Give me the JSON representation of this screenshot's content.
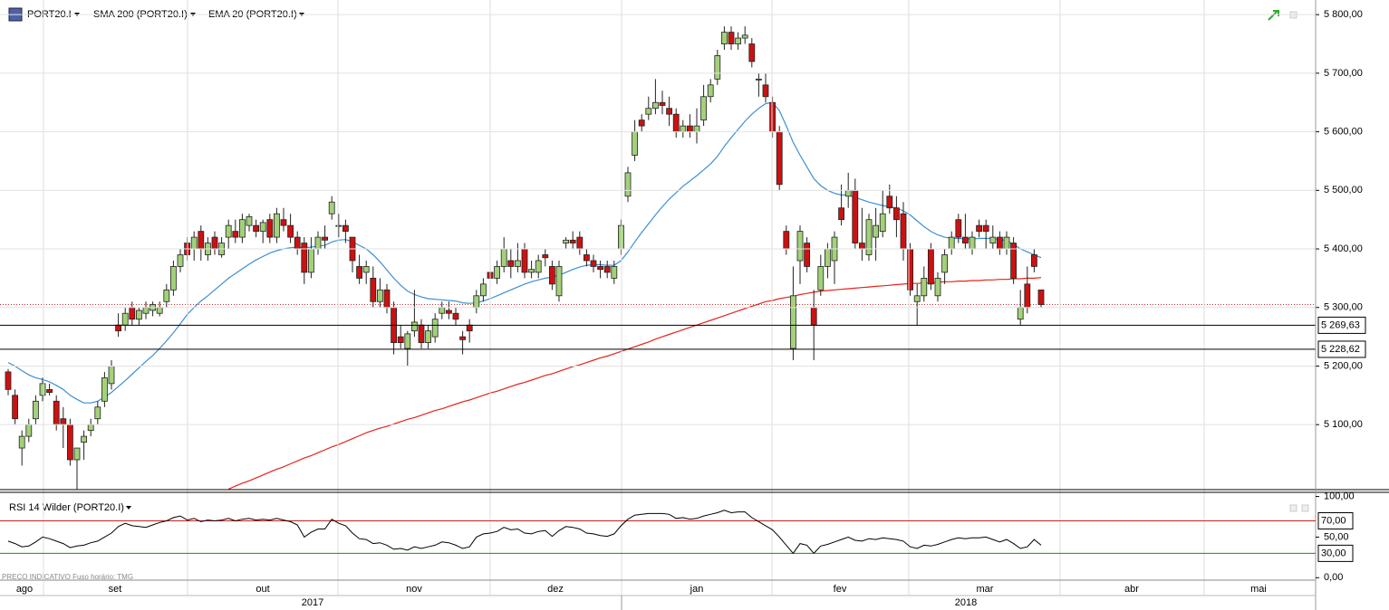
{
  "chart_data": {
    "type": "candlestick",
    "symbol": "PORT20.I",
    "up_color": "#a3d17a",
    "down_color": "#cc1111",
    "grid": true,
    "ylim": [
      4989,
      5825
    ],
    "yticks": [
      {
        "value": 5100,
        "label": "5 100,00"
      },
      {
        "value": 5200,
        "label": "5 200,00"
      },
      {
        "value": 5300,
        "label": "5 300,00"
      },
      {
        "value": 5400,
        "label": "5 400,00"
      },
      {
        "value": 5500,
        "label": "5 500,00"
      },
      {
        "value": 5600,
        "label": "5 600,00"
      },
      {
        "value": 5700,
        "label": "5 700,00"
      },
      {
        "value": 5800,
        "label": "5 800,00"
      }
    ],
    "levels": [
      {
        "value": 5269.63,
        "label": "5 269,63"
      },
      {
        "value": 5228.62,
        "label": "5 228,62"
      }
    ],
    "ohlc": [
      [
        5190,
        5195,
        5150,
        5160
      ],
      [
        5150,
        5160,
        5100,
        5110
      ],
      [
        5060,
        5090,
        5030,
        5080
      ],
      [
        5080,
        5110,
        5070,
        5100
      ],
      [
        5110,
        5150,
        5100,
        5140
      ],
      [
        5150,
        5180,
        5140,
        5170
      ],
      [
        5160,
        5170,
        5150,
        5155
      ],
      [
        5140,
        5150,
        5090,
        5100
      ],
      [
        5110,
        5130,
        5060,
        5100
      ],
      [
        5100,
        5110,
        5030,
        5040
      ],
      [
        5040,
        5060,
        4990,
        5060
      ],
      [
        5070,
        5090,
        5040,
        5080
      ],
      [
        5090,
        5110,
        5080,
        5100
      ],
      [
        5110,
        5140,
        5100,
        5130
      ],
      [
        5140,
        5190,
        5130,
        5180
      ],
      [
        5170,
        5210,
        5160,
        5200
      ],
      [
        5270,
        5290,
        5250,
        5260
      ],
      [
        5270,
        5300,
        5260,
        5290
      ],
      [
        5300,
        5310,
        5270,
        5280
      ],
      [
        5280,
        5300,
        5270,
        5295
      ],
      [
        5290,
        5310,
        5280,
        5300
      ],
      [
        5295,
        5310,
        5285,
        5305
      ],
      [
        5290,
        5310,
        5285,
        5300
      ],
      [
        5310,
        5340,
        5300,
        5330
      ],
      [
        5330,
        5380,
        5320,
        5370
      ],
      [
        5370,
        5400,
        5360,
        5390
      ],
      [
        5410,
        5420,
        5380,
        5390
      ],
      [
        5400,
        5430,
        5380,
        5420
      ],
      [
        5430,
        5440,
        5380,
        5400
      ],
      [
        5390,
        5420,
        5380,
        5410
      ],
      [
        5420,
        5430,
        5390,
        5400
      ],
      [
        5390,
        5420,
        5385,
        5410
      ],
      [
        5420,
        5450,
        5400,
        5440
      ],
      [
        5430,
        5450,
        5410,
        5420
      ],
      [
        5420,
        5460,
        5410,
        5450
      ],
      [
        5440,
        5460,
        5430,
        5455
      ],
      [
        5440,
        5450,
        5420,
        5430
      ],
      [
        5430,
        5450,
        5410,
        5445
      ],
      [
        5450,
        5460,
        5410,
        5420
      ],
      [
        5420,
        5470,
        5410,
        5460
      ],
      [
        5450,
        5470,
        5430,
        5440
      ],
      [
        5440,
        5460,
        5410,
        5420
      ],
      [
        5420,
        5430,
        5390,
        5400
      ],
      [
        5410,
        5420,
        5340,
        5360
      ],
      [
        5360,
        5420,
        5350,
        5400
      ],
      [
        5400,
        5430,
        5390,
        5420
      ],
      [
        5420,
        5440,
        5400,
        5415
      ],
      [
        5460,
        5490,
        5450,
        5480
      ],
      [
        5440,
        5460,
        5420,
        5440
      ],
      [
        5440,
        5450,
        5410,
        5430
      ],
      [
        5420,
        5420,
        5360,
        5380
      ],
      [
        5370,
        5390,
        5340,
        5350
      ],
      [
        5360,
        5380,
        5340,
        5370
      ],
      [
        5350,
        5370,
        5300,
        5310
      ],
      [
        5310,
        5350,
        5300,
        5330
      ],
      [
        5330,
        5340,
        5290,
        5300
      ],
      [
        5300,
        5310,
        5220,
        5240
      ],
      [
        5250,
        5270,
        5230,
        5240
      ],
      [
        5230,
        5260,
        5200,
        5255
      ],
      [
        5260,
        5330,
        5250,
        5275
      ],
      [
        5270,
        5280,
        5230,
        5240
      ],
      [
        5240,
        5270,
        5230,
        5260
      ],
      [
        5250,
        5290,
        5240,
        5280
      ],
      [
        5290,
        5310,
        5280,
        5300
      ],
      [
        5295,
        5310,
        5280,
        5290
      ],
      [
        5290,
        5300,
        5270,
        5280
      ],
      [
        5250,
        5260,
        5220,
        5245
      ],
      [
        5270,
        5280,
        5240,
        5260
      ],
      [
        5300,
        5330,
        5290,
        5320
      ],
      [
        5320,
        5350,
        5310,
        5340
      ],
      [
        5360,
        5370,
        5340,
        5350
      ],
      [
        5350,
        5380,
        5340,
        5370
      ],
      [
        5370,
        5420,
        5360,
        5400
      ],
      [
        5380,
        5400,
        5350,
        5370
      ],
      [
        5370,
        5410,
        5360,
        5380
      ],
      [
        5400,
        5410,
        5350,
        5360
      ],
      [
        5360,
        5380,
        5350,
        5365
      ],
      [
        5360,
        5390,
        5350,
        5380
      ],
      [
        5390,
        5400,
        5370,
        5385
      ],
      [
        5370,
        5380,
        5330,
        5340
      ],
      [
        5320,
        5380,
        5310,
        5370
      ],
      [
        5410,
        5420,
        5400,
        5415
      ],
      [
        5415,
        5430,
        5400,
        5410
      ],
      [
        5420,
        5430,
        5390,
        5400
      ],
      [
        5390,
        5400,
        5370,
        5380
      ],
      [
        5380,
        5390,
        5360,
        5370
      ],
      [
        5370,
        5380,
        5350,
        5365
      ],
      [
        5370,
        5380,
        5350,
        5360
      ],
      [
        5350,
        5380,
        5340,
        5370
      ],
      [
        5400,
        5450,
        5390,
        5440
      ],
      [
        5490,
        5540,
        5480,
        5530
      ],
      [
        5560,
        5620,
        5550,
        5600
      ],
      [
        5620,
        5630,
        5600,
        5610
      ],
      [
        5630,
        5660,
        5620,
        5640
      ],
      [
        5640,
        5690,
        5630,
        5650
      ],
      [
        5650,
        5670,
        5630,
        5645
      ],
      [
        5640,
        5660,
        5610,
        5630
      ],
      [
        5630,
        5640,
        5590,
        5600
      ],
      [
        5600,
        5620,
        5590,
        5610
      ],
      [
        5610,
        5630,
        5590,
        5600
      ],
      [
        5600,
        5640,
        5580,
        5610
      ],
      [
        5620,
        5680,
        5610,
        5660
      ],
      [
        5660,
        5690,
        5650,
        5680
      ],
      [
        5690,
        5740,
        5680,
        5730
      ],
      [
        5750,
        5780,
        5740,
        5770
      ],
      [
        5770,
        5780,
        5740,
        5750
      ],
      [
        5750,
        5770,
        5740,
        5760
      ],
      [
        5760,
        5780,
        5750,
        5765
      ],
      [
        5750,
        5760,
        5710,
        5720
      ],
      [
        5690,
        5700,
        5660,
        5690
      ],
      [
        5680,
        5700,
        5650,
        5660
      ],
      [
        5650,
        5660,
        5590,
        5600
      ],
      [
        5600,
        5610,
        5500,
        5510
      ],
      [
        5430,
        5440,
        5390,
        5400
      ],
      [
        5230,
        5370,
        5210,
        5320
      ],
      [
        5380,
        5440,
        5340,
        5430
      ],
      [
        5410,
        5420,
        5360,
        5370
      ],
      [
        5300,
        5330,
        5210,
        5270
      ],
      [
        5330,
        5390,
        5320,
        5370
      ],
      [
        5370,
        5410,
        5350,
        5400
      ],
      [
        5380,
        5430,
        5340,
        5420
      ],
      [
        5470,
        5510,
        5440,
        5450
      ],
      [
        5490,
        5530,
        5470,
        5500
      ],
      [
        5500,
        5520,
        5400,
        5410
      ],
      [
        5410,
        5470,
        5380,
        5400
      ],
      [
        5390,
        5460,
        5380,
        5450
      ],
      [
        5420,
        5470,
        5380,
        5440
      ],
      [
        5430,
        5500,
        5420,
        5460
      ],
      [
        5490,
        5510,
        5460,
        5470
      ],
      [
        5470,
        5490,
        5420,
        5450
      ],
      [
        5460,
        5480,
        5380,
        5400
      ],
      [
        5400,
        5410,
        5320,
        5330
      ],
      [
        5310,
        5340,
        5270,
        5320
      ],
      [
        5320,
        5370,
        5310,
        5350
      ],
      [
        5400,
        5410,
        5330,
        5340
      ],
      [
        5320,
        5360,
        5310,
        5350
      ],
      [
        5360,
        5400,
        5340,
        5390
      ],
      [
        5400,
        5430,
        5390,
        5420
      ],
      [
        5450,
        5460,
        5410,
        5420
      ],
      [
        5420,
        5460,
        5400,
        5410
      ],
      [
        5400,
        5430,
        5390,
        5420
      ],
      [
        5440,
        5450,
        5420,
        5430
      ],
      [
        5440,
        5450,
        5400,
        5430
      ],
      [
        5410,
        5440,
        5400,
        5420
      ],
      [
        5420,
        5430,
        5390,
        5400
      ],
      [
        5400,
        5430,
        5390,
        5420
      ],
      [
        5410,
        5420,
        5340,
        5350
      ],
      [
        5280,
        5330,
        5270,
        5300
      ],
      [
        5340,
        5370,
        5290,
        5300
      ],
      [
        5390,
        5400,
        5360,
        5370
      ],
      [
        5330,
        5330,
        5300,
        5305
      ]
    ],
    "overlays": [
      {
        "name": "SMA 200 (PORT20.I)",
        "color": "#e3241b",
        "values": [
          null,
          null,
          null,
          null,
          null,
          null,
          null,
          null,
          null,
          null,
          null,
          null,
          null,
          null,
          null,
          null,
          null,
          null,
          null,
          null,
          null,
          null,
          null,
          null,
          null,
          null,
          null,
          null,
          null,
          null,
          null,
          null,
          4990,
          4995,
          5000,
          5004,
          5009,
          5014,
          5019,
          5024,
          5028,
          5033,
          5038,
          5043,
          5047,
          5052,
          5057,
          5062,
          5066,
          5071,
          5076,
          5081,
          5086,
          5090,
          5094,
          5097,
          5101,
          5105,
          5109,
          5112,
          5116,
          5120,
          5124,
          5127,
          5131,
          5135,
          5139,
          5142,
          5146,
          5150,
          5154,
          5157,
          5161,
          5165,
          5169,
          5172,
          5176,
          5180,
          5184,
          5187,
          5191,
          5195,
          5199,
          5202,
          5206,
          5210,
          5214,
          5217,
          5221,
          5225,
          5229,
          5233,
          5237,
          5241,
          5246,
          5250,
          5254,
          5258,
          5262,
          5266,
          5270,
          5274,
          5278,
          5282,
          5286,
          5290,
          5294,
          5298,
          5302,
          5306,
          5310,
          5312,
          5315,
          5317,
          5319,
          5322,
          5324,
          5326,
          5328,
          5329,
          5330,
          5331,
          5332,
          5333,
          5334,
          5335,
          5336,
          5337,
          5338,
          5339,
          5340,
          5341,
          5341,
          5342,
          5342,
          5343,
          5344,
          5344,
          5345,
          5345,
          5346,
          5346,
          5347,
          5347,
          5348,
          5348,
          5349,
          5349,
          5350,
          5350,
          5351
        ]
      },
      {
        "name": "EMA 20 (PORT20.I)",
        "color": "#3b8fd3",
        "values": [
          5206,
          5200,
          5192,
          5185,
          5180,
          5177,
          5173,
          5167,
          5160,
          5150,
          5143,
          5137,
          5137,
          5140,
          5147,
          5155,
          5165,
          5175,
          5186,
          5197,
          5208,
          5218,
          5230,
          5243,
          5257,
          5272,
          5288,
          5300,
          5311,
          5320,
          5330,
          5340,
          5350,
          5358,
          5366,
          5374,
          5381,
          5387,
          5393,
          5397,
          5400,
          5402,
          5403,
          5402,
          5403,
          5405,
          5406,
          5412,
          5415,
          5416,
          5412,
          5406,
          5400,
          5390,
          5378,
          5364,
          5350,
          5338,
          5328,
          5322,
          5318,
          5315,
          5314,
          5313,
          5312,
          5311,
          5308,
          5307,
          5308,
          5311,
          5315,
          5320,
          5325,
          5330,
          5335,
          5340,
          5344,
          5347,
          5350,
          5352,
          5355,
          5360,
          5365,
          5369,
          5372,
          5373,
          5373,
          5372,
          5372,
          5380,
          5395,
          5412,
          5428,
          5443,
          5458,
          5472,
          5485,
          5496,
          5507,
          5516,
          5525,
          5535,
          5545,
          5558,
          5575,
          5590,
          5604,
          5618,
          5630,
          5640,
          5648,
          5650,
          5636,
          5610,
          5582,
          5560,
          5540,
          5520,
          5508,
          5500,
          5495,
          5492,
          5492,
          5488,
          5484,
          5480,
          5477,
          5474,
          5472,
          5470,
          5465,
          5458,
          5448,
          5438,
          5430,
          5424,
          5420,
          5418,
          5418,
          5417,
          5417,
          5418,
          5418,
          5418,
          5416,
          5414,
          5408,
          5400,
          5395,
          5390,
          5385
        ]
      }
    ],
    "months": [
      "ago",
      "set",
      "out",
      "nov",
      "dez",
      "jan",
      "fev",
      "mar",
      "abr",
      "mai"
    ],
    "years": [
      "2017",
      "2018"
    ],
    "footnote": "PREÇO INDICATIVO   Fuso horário: TMG",
    "rsi": {
      "name": "RSI 14 Wilder (PORT20.I)",
      "color": "#000000",
      "ylim": [
        -3,
        104
      ],
      "yticks": [
        {
          "value": 0,
          "label": "0,00"
        },
        {
          "value": 50,
          "label": "50,00"
        },
        {
          "value": 100,
          "label": "100,00"
        }
      ],
      "levels": [
        {
          "value": 70,
          "label": "70,00",
          "color": "#c62020"
        },
        {
          "value": 30,
          "label": "30,00",
          "color": "#1e8c1e"
        }
      ],
      "values": [
        45,
        42,
        38,
        39,
        44,
        50,
        48,
        45,
        42,
        37,
        39,
        40,
        43,
        45,
        50,
        55,
        63,
        67,
        64,
        63,
        62,
        65,
        68,
        70,
        74,
        76,
        71,
        73,
        69,
        71,
        70,
        71,
        73,
        70,
        72,
        73,
        71,
        72,
        71,
        73,
        71,
        69,
        65,
        50,
        56,
        60,
        60,
        72,
        67,
        64,
        55,
        48,
        47,
        42,
        43,
        40,
        35,
        36,
        34,
        38,
        36,
        38,
        40,
        44,
        43,
        40,
        36,
        38,
        50,
        54,
        55,
        57,
        62,
        59,
        60,
        55,
        54,
        57,
        58,
        51,
        58,
        63,
        62,
        60,
        55,
        54,
        52,
        51,
        54,
        64,
        72,
        77,
        78,
        79,
        79,
        79,
        78,
        73,
        74,
        72,
        73,
        76,
        78,
        80,
        83,
        80,
        81,
        81,
        74,
        69,
        64,
        59,
        50,
        40,
        30,
        42,
        40,
        30,
        39,
        41,
        44,
        47,
        50,
        46,
        45,
        48,
        47,
        49,
        48,
        47,
        45,
        38,
        36,
        40,
        39,
        41,
        44,
        47,
        49,
        48,
        49,
        49,
        50,
        47,
        44,
        47,
        42,
        36,
        38,
        47,
        40
      ]
    }
  }
}
